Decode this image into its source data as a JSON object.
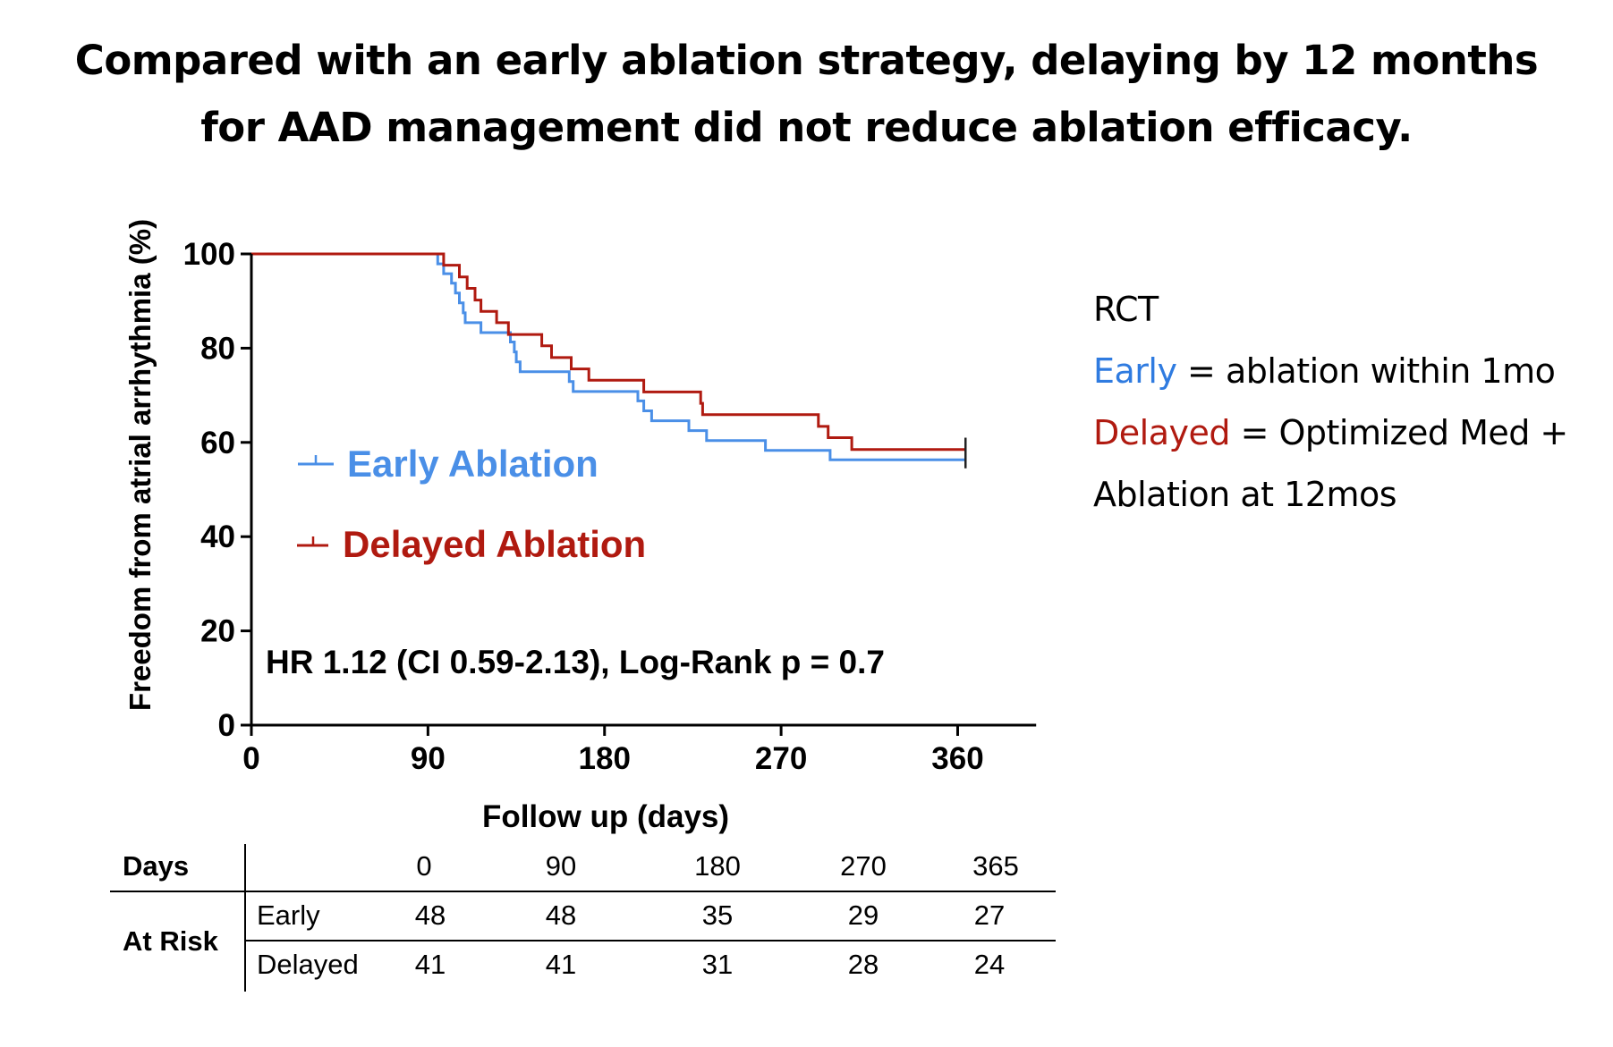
{
  "title": {
    "line1": "Compared with an early ablation strategy, delaying by 12 months",
    "line2": "for AAD management did not reduce ablation efficacy."
  },
  "chart_data": {
    "type": "line",
    "subtype": "kaplan-meier step",
    "xlabel": "Follow up (days)",
    "ylabel": "Freedom from atrial arrhythmia (%)",
    "xlim": [
      0,
      400
    ],
    "ylim": [
      0,
      100
    ],
    "x_ticks": [
      0,
      90,
      180,
      270,
      360
    ],
    "y_ticks": [
      0,
      20,
      40,
      60,
      80,
      100
    ],
    "grid": false,
    "legend_position": "inside-middle-left",
    "annotation": "HR 1.12 (CI 0.59-2.13), Log-Rank p = 0.7",
    "series": [
      {
        "name": "Early Ablation",
        "color": "#4A8FE7",
        "points": [
          [
            0,
            100
          ],
          [
            95,
            100
          ],
          [
            95,
            97.9
          ],
          [
            98,
            97.9
          ],
          [
            98,
            95.8
          ],
          [
            102,
            95.8
          ],
          [
            102,
            93.8
          ],
          [
            104,
            93.8
          ],
          [
            104,
            91.7
          ],
          [
            106,
            91.7
          ],
          [
            106,
            89.6
          ],
          [
            108,
            89.6
          ],
          [
            108,
            87.5
          ],
          [
            109,
            87.5
          ],
          [
            109,
            85.4
          ],
          [
            117,
            85.4
          ],
          [
            117,
            83.3
          ],
          [
            132,
            83.3
          ],
          [
            132,
            81.3
          ],
          [
            134,
            81.3
          ],
          [
            134,
            79.2
          ],
          [
            135,
            79.2
          ],
          [
            135,
            77.1
          ],
          [
            137,
            77.1
          ],
          [
            137,
            75.0
          ],
          [
            162,
            75.0
          ],
          [
            162,
            72.9
          ],
          [
            164,
            72.9
          ],
          [
            164,
            70.8
          ],
          [
            197,
            70.8
          ],
          [
            197,
            68.8
          ],
          [
            200,
            68.8
          ],
          [
            200,
            66.7
          ],
          [
            204,
            66.7
          ],
          [
            204,
            64.6
          ],
          [
            223,
            64.6
          ],
          [
            223,
            62.5
          ],
          [
            232,
            62.5
          ],
          [
            232,
            60.4
          ],
          [
            262,
            60.4
          ],
          [
            262,
            58.3
          ],
          [
            295,
            58.3
          ],
          [
            295,
            56.3
          ],
          [
            364,
            56.3
          ]
        ]
      },
      {
        "name": "Delayed Ablation",
        "color": "#B01A10",
        "points": [
          [
            0,
            100
          ],
          [
            98,
            100
          ],
          [
            98,
            97.6
          ],
          [
            106,
            97.6
          ],
          [
            106,
            95.1
          ],
          [
            110,
            95.1
          ],
          [
            110,
            92.7
          ],
          [
            114,
            92.7
          ],
          [
            114,
            90.2
          ],
          [
            117,
            90.2
          ],
          [
            117,
            87.8
          ],
          [
            125,
            87.8
          ],
          [
            125,
            85.4
          ],
          [
            131,
            85.4
          ],
          [
            131,
            82.9
          ],
          [
            148,
            82.9
          ],
          [
            148,
            80.5
          ],
          [
            153,
            80.5
          ],
          [
            153,
            78.0
          ],
          [
            163,
            78.0
          ],
          [
            163,
            75.6
          ],
          [
            172,
            75.6
          ],
          [
            172,
            73.2
          ],
          [
            200,
            73.2
          ],
          [
            200,
            70.7
          ],
          [
            229,
            70.7
          ],
          [
            229,
            68.3
          ],
          [
            230,
            68.3
          ],
          [
            230,
            65.9
          ],
          [
            289,
            65.9
          ],
          [
            289,
            63.4
          ],
          [
            294,
            63.4
          ],
          [
            294,
            61.0
          ],
          [
            306,
            61.0
          ],
          [
            306,
            58.5
          ],
          [
            364,
            58.5
          ]
        ]
      }
    ]
  },
  "axis_labels": {
    "x_ticks": [
      "0",
      "90",
      "180",
      "270",
      "360"
    ],
    "y_ticks": [
      "0",
      "20",
      "40",
      "60",
      "80",
      "100"
    ]
  },
  "rct_note": {
    "heading": "RCT",
    "early_word": "Early",
    "early_def": " = ablation within 1mo",
    "delayed_word": "Delayed",
    "delayed_def": " = Optimized Med +",
    "delayed_def2": "Ablation at 12mos",
    "early_color": "#2F7BE0",
    "delayed_color": "#B01A10"
  },
  "risk_table": {
    "days_label": "Days",
    "at_risk_label": "At Risk",
    "days": [
      "0",
      "90",
      "180",
      "270",
      "365"
    ],
    "rows": [
      {
        "group": "Early",
        "values": [
          "48",
          "48",
          "35",
          "29",
          "27"
        ]
      },
      {
        "group": "Delayed",
        "values": [
          "41",
          "41",
          "31",
          "28",
          "24"
        ]
      }
    ]
  }
}
